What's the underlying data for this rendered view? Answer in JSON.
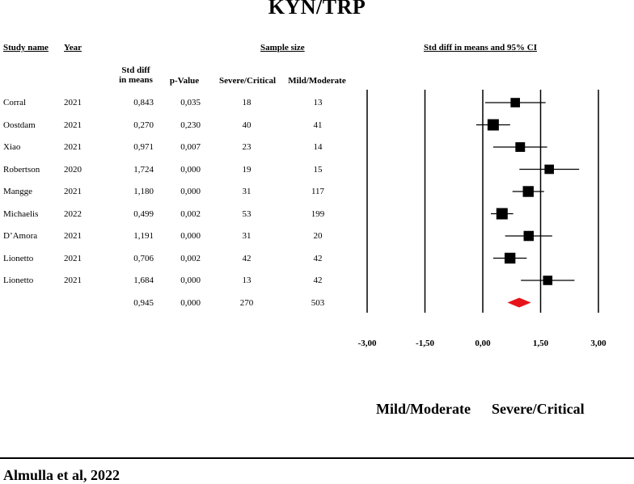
{
  "chart_data": {
    "type": "forest",
    "title": "KYN/TRP",
    "headers": {
      "study": "Study name",
      "year": "Year",
      "sample_size": "Sample size",
      "ci": "Std diff in means and 95% CI",
      "smd": "Std diff\nin means",
      "p": "p-Value",
      "severe": "Severe/Critical",
      "mild": "Mild/Moderate"
    },
    "studies": [
      {
        "name": "Corral",
        "year": "2021",
        "smd_text": "0,843",
        "p": "0,035",
        "severe": "18",
        "mild": "13",
        "smd": 0.843,
        "ci": [
          0.06,
          1.63
        ],
        "weight": 0.6
      },
      {
        "name": "Oostdam",
        "year": "2021",
        "smd_text": "0,270",
        "p": "0,230",
        "severe": "40",
        "mild": "41",
        "smd": 0.27,
        "ci": [
          -0.17,
          0.71
        ],
        "weight": 1.0
      },
      {
        "name": "Xiao",
        "year": "2021",
        "smd_text": "0,971",
        "p": "0,007",
        "severe": "23",
        "mild": "14",
        "smd": 0.971,
        "ci": [
          0.27,
          1.67
        ],
        "weight": 0.65
      },
      {
        "name": "Robertson",
        "year": "2020",
        "smd_text": "1,724",
        "p": "0,000",
        "severe": "19",
        "mild": "15",
        "smd": 1.724,
        "ci": [
          0.95,
          2.5
        ],
        "weight": 0.6
      },
      {
        "name": "Mangge",
        "year": "2021",
        "smd_text": "1,180",
        "p": "0,000",
        "severe": "31",
        "mild": "117",
        "smd": 1.18,
        "ci": [
          0.77,
          1.59
        ],
        "weight": 0.9
      },
      {
        "name": "Michaelis",
        "year": "2022",
        "smd_text": "0,499",
        "p": "0,002",
        "severe": "53",
        "mild": "199",
        "smd": 0.499,
        "ci": [
          0.21,
          0.79
        ],
        "weight": 1.0
      },
      {
        "name": "D’Amora",
        "year": "2021",
        "smd_text": "1,191",
        "p": "0,000",
        "severe": "31",
        "mild": "20",
        "smd": 1.191,
        "ci": [
          0.58,
          1.8
        ],
        "weight": 0.75
      },
      {
        "name": "Lionetto",
        "year": "2021",
        "smd_text": "0,706",
        "p": "0,002",
        "severe": "42",
        "mild": "42",
        "smd": 0.706,
        "ci": [
          0.27,
          1.14
        ],
        "weight": 0.9
      },
      {
        "name": "Lionetto",
        "year": "2021",
        "smd_text": "1,684",
        "p": "0,000",
        "severe": "13",
        "mild": "42",
        "smd": 1.684,
        "ci": [
          0.99,
          2.38
        ],
        "weight": 0.6
      }
    ],
    "summary": {
      "smd_text": "0,945",
      "p": "0,000",
      "severe": "270",
      "mild": "503",
      "smd": 0.945,
      "ci": [
        0.64,
        1.25
      ],
      "color": "#e8141b"
    },
    "xaxis": {
      "ticks": [
        -3,
        -1.5,
        0,
        1.5,
        3
      ],
      "tick_labels": [
        "-3,00",
        "-1,50",
        "0,00",
        "1,50",
        "3,00"
      ],
      "xlim": [
        -3,
        3
      ]
    },
    "favours_left": "Mild/Moderate",
    "favours_right": "Severe/Critical"
  },
  "footer": "Almulla et al, 2022"
}
